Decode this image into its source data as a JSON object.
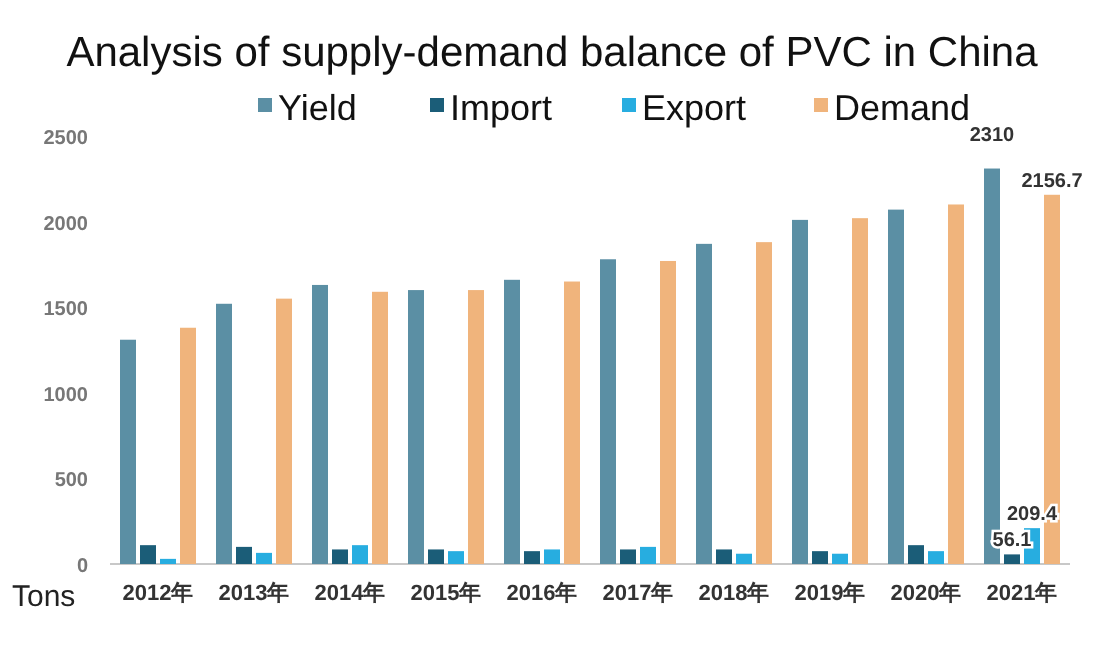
{
  "chart_data": {
    "type": "bar",
    "title": "Analysis of supply-demand balance of PVC in China",
    "ylabel": "Tons",
    "categories": [
      "2012年",
      "2013年",
      "2014年",
      "2015年",
      "2016年",
      "2017年",
      "2018年",
      "2019年",
      "2020年",
      "2021年"
    ],
    "series": [
      {
        "name": "Yield",
        "color": "#5b8fa4",
        "values": [
          1310,
          1520,
          1630,
          1600,
          1660,
          1780,
          1870,
          2010,
          2070,
          2310
        ],
        "value_labels": [
          null,
          null,
          null,
          null,
          null,
          null,
          null,
          null,
          null,
          "2310"
        ]
      },
      {
        "name": "Import",
        "color": "#1b5d78",
        "values": [
          110,
          100,
          85,
          85,
          75,
          85,
          85,
          75,
          110,
          56.1
        ],
        "value_labels": [
          null,
          null,
          null,
          null,
          null,
          null,
          null,
          null,
          null,
          "56.1"
        ]
      },
      {
        "name": "Export",
        "color": "#27ade0",
        "values": [
          30,
          65,
          110,
          75,
          85,
          100,
          60,
          60,
          75,
          209.4
        ],
        "value_labels": [
          null,
          null,
          null,
          null,
          null,
          null,
          null,
          null,
          null,
          "209.4"
        ]
      },
      {
        "name": "Demand",
        "color": "#f0b47c",
        "values": [
          1380,
          1550,
          1590,
          1600,
          1650,
          1770,
          1880,
          2020,
          2100,
          2156.7
        ],
        "value_labels": [
          null,
          null,
          null,
          null,
          null,
          null,
          null,
          null,
          null,
          "2156.7"
        ]
      }
    ],
    "ylim": [
      0,
      2500
    ],
    "yticks": [
      0,
      500,
      1000,
      1500,
      2000,
      2500
    ],
    "legend": "top"
  }
}
